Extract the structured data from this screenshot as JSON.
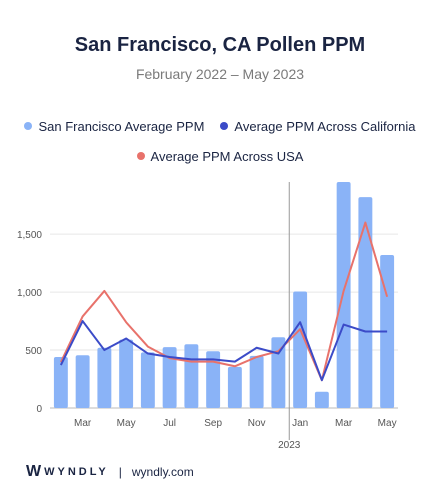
{
  "colors": {
    "bar": "#8AB3F7",
    "california": "#3B4BC8",
    "usa": "#E8726B",
    "title": "#1a2442"
  },
  "footer": {
    "logo_mark": "W",
    "brand": "WYNDLY",
    "separator": "|",
    "site": "wyndly.com"
  },
  "chart_data": {
    "type": "bar",
    "title": "San Francisco, CA Pollen PPM",
    "subtitle": "February 2022 – May 2023",
    "legend": [
      "San Francisco Average PPM",
      "Average PPM Across California",
      "Average PPM Across USA"
    ],
    "categories": [
      "Feb 2022",
      "Mar 2022",
      "Apr 2022",
      "May 2022",
      "Jun 2022",
      "Jul 2022",
      "Aug 2022",
      "Sep 2022",
      "Oct 2022",
      "Nov 2022",
      "Dec 2022",
      "Jan 2023",
      "Feb 2023",
      "Mar 2023",
      "Apr 2023",
      "May 2023"
    ],
    "x_tick_labels": [
      "",
      "Mar",
      "",
      "May",
      "",
      "Jul",
      "",
      "Sep",
      "",
      "Nov",
      "",
      "Jan",
      "",
      "Mar",
      "",
      "May"
    ],
    "year_label": "2023",
    "y_ticks": [
      "0",
      "500",
      "1,000",
      "1,500"
    ],
    "y_tick_values": [
      0,
      500,
      1000,
      1500
    ],
    "ylim": [
      0,
      1950
    ],
    "series": [
      {
        "name": "San Francisco Average PPM",
        "type": "bar",
        "values": [
          440,
          455,
          520,
          590,
          480,
          525,
          550,
          490,
          355,
          450,
          610,
          1005,
          140,
          1950,
          1820,
          1320
        ]
      },
      {
        "name": "Average PPM Across California",
        "type": "line",
        "values": [
          370,
          750,
          500,
          600,
          470,
          440,
          420,
          420,
          400,
          520,
          470,
          740,
          240,
          720,
          660,
          660
        ]
      },
      {
        "name": "Average PPM Across USA",
        "type": "line",
        "values": [
          395,
          790,
          1010,
          740,
          530,
          430,
          400,
          400,
          360,
          440,
          490,
          680,
          240,
          1010,
          1600,
          960
        ]
      }
    ]
  }
}
